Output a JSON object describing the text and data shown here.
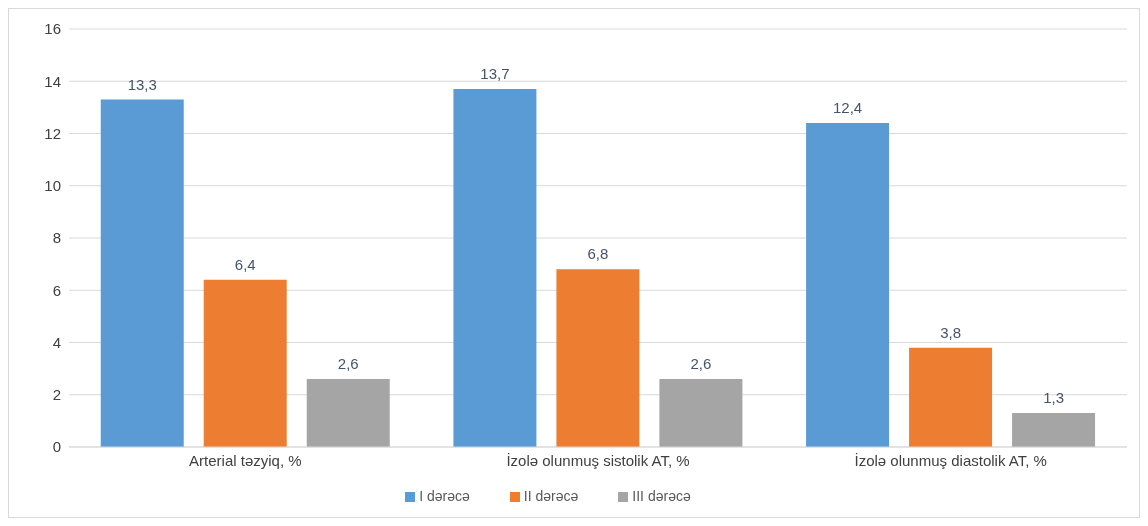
{
  "chart_data": {
    "type": "bar",
    "categories": [
      "Arterial təzyiq, %",
      "İzolə olunmuş sistolik  AT, %",
      "İzolə olunmuş diastolik AT, %"
    ],
    "series": [
      {
        "name": "I dərəcə",
        "color": "#5b9bd5",
        "values": [
          13.3,
          13.7,
          12.4
        ],
        "value_labels": [
          "13,3",
          "13,7",
          "12,4"
        ]
      },
      {
        "name": "II dərəcə",
        "color": "#ed7d31",
        "values": [
          6.4,
          6.8,
          3.8
        ],
        "value_labels": [
          "6,4",
          "6,8",
          "3,8"
        ]
      },
      {
        "name": "III dərəcə",
        "color": "#a5a5a5",
        "values": [
          2.6,
          2.6,
          1.3
        ],
        "value_labels": [
          "2,6",
          "2,6",
          "1,3"
        ]
      }
    ],
    "ylim": [
      0,
      16
    ],
    "yticks": [
      0,
      2,
      4,
      6,
      8,
      10,
      12,
      14,
      16
    ],
    "grid": "y",
    "legend": "bottom"
  }
}
